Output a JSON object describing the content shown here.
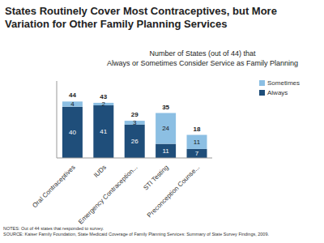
{
  "chart_data": {
    "type": "bar",
    "title": "States Routinely Cover Most Contraceptives, but More Variation for Other Family Planning Services",
    "subtitle": [
      "Number of States (out of 44) that",
      "Always or Sometimes Consider Service as Family Planning"
    ],
    "categories": [
      "Oral Contraceptives",
      "IUDs",
      "Emergency Contraception...",
      "STI Testing",
      "Preconception Counse..."
    ],
    "series": [
      {
        "name": "Always",
        "color": "#1f4e7a",
        "values": [
          40,
          41,
          26,
          11,
          7
        ]
      },
      {
        "name": "Sometimes",
        "color": "#8cbfe3",
        "values": [
          4,
          2,
          3,
          24,
          11
        ]
      }
    ],
    "totals": [
      44,
      43,
      29,
      35,
      18
    ],
    "stacked": true,
    "data_labels": true,
    "ylim": [
      0,
      60
    ],
    "tick_labels": "x",
    "legend": "upper right",
    "notes": "NOTES: Out of 44 states that responded to survey.",
    "source": "SOURCE: Kaiser Family Foundation, State Medicaid Coverage of Family Planning Services: Summary of State Survey Findings, 2009."
  }
}
